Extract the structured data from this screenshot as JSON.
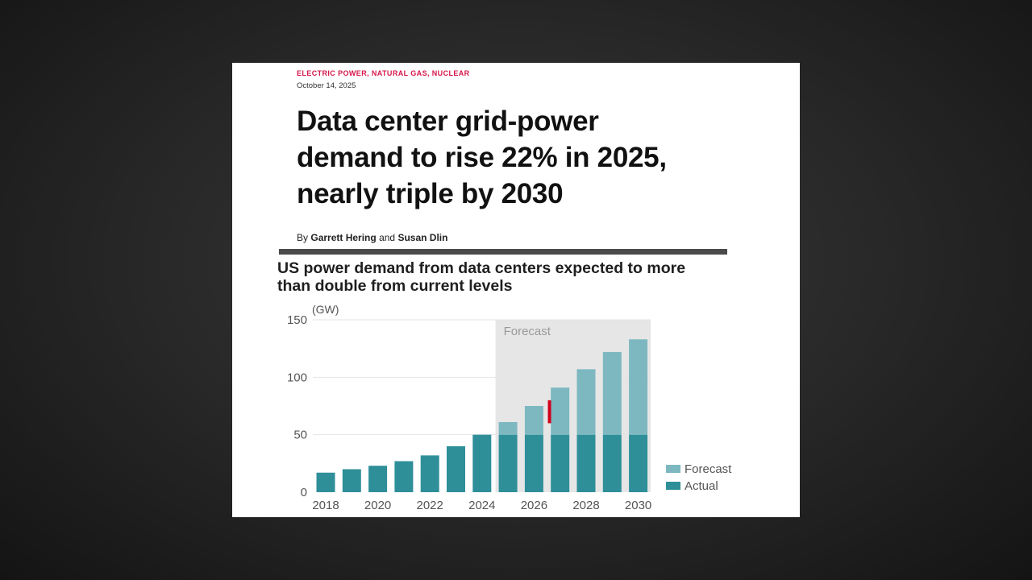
{
  "article": {
    "kicker": "ELECTRIC POWER, NATURAL GAS, NUCLEAR",
    "date": "October 14, 2025",
    "headline_lines": [
      "Data center grid-power",
      "demand to rise 22% in 2025,",
      "nearly triple by 2030"
    ],
    "byline_prefix": "By",
    "author1": "Garrett Hering",
    "byline_and": "and",
    "author2": "Susan Dlin"
  },
  "chart_data": {
    "type": "bar",
    "title_lines": [
      "US power demand from data centers expected to more",
      "than double from current levels"
    ],
    "ylabel": "(GW)",
    "xlabel": "",
    "ylim": [
      0,
      150
    ],
    "yticks": [
      0,
      50,
      100,
      150
    ],
    "xticks": [
      "2018",
      "2020",
      "2022",
      "2024",
      "2026",
      "2028",
      "2030"
    ],
    "categories": [
      2018,
      2019,
      2020,
      2021,
      2022,
      2023,
      2024,
      2025,
      2026,
      2027,
      2028,
      2029,
      2030
    ],
    "series": [
      {
        "name": "Actual",
        "values": [
          17,
          20,
          23,
          27,
          32,
          40,
          50,
          50,
          50,
          50,
          50,
          50,
          50
        ]
      },
      {
        "name": "Forecast",
        "values": [
          0,
          0,
          0,
          0,
          0,
          0,
          0,
          11,
          25,
          41,
          57,
          72,
          83
        ]
      }
    ],
    "forecast_region": {
      "label": "Forecast",
      "from": 2025,
      "to": 2030
    },
    "marker": {
      "year": 2026.5,
      "from": 60,
      "to": 80,
      "color": "#d0021b"
    },
    "legend": [
      "Forecast",
      "Actual"
    ],
    "legend_position": "bottom-right",
    "grid": true,
    "colors": {
      "actual": "#2e8f99",
      "forecast": "#7db8c1",
      "forecast_bg": "#e6e6e6",
      "grid": "#e4e4e4"
    }
  }
}
